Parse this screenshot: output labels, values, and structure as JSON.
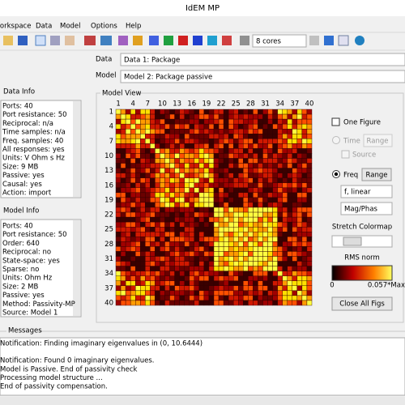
{
  "window": {
    "title": "IdEM MP"
  },
  "menu": [
    "Workspace",
    "Data",
    "Model",
    "Options",
    "Help"
  ],
  "toolbar": {
    "cores": "8 cores"
  },
  "data_row": {
    "label": "Data",
    "value": "Data 1: Package"
  },
  "model_row": {
    "label": "Model",
    "value": "Model 2: Package passive"
  },
  "data_info": {
    "title": "Data Info",
    "lines": [
      "Ports: 40",
      "Port resistance: 50",
      "Reciprocal: n/a",
      "Time samples: n/a",
      "Freq. samples: 40",
      "All responses: yes",
      "Units: V Ohm s Hz",
      "Size: 9 MB",
      "Passive: yes",
      "Causal: yes",
      "Action: import"
    ]
  },
  "model_info": {
    "title": "Model Info",
    "lines": [
      "Ports: 40",
      "Port resistance: 50",
      "Order: 640",
      "Reciprocal: no",
      "State-space: yes",
      "Sparse: no",
      "Units: Ohm Hz",
      "Size: 2 MB",
      "Passive: yes",
      "Method: Passivity-MP",
      "Source: Model 1"
    ]
  },
  "model_view": {
    "title": "Model View",
    "col_ticks": [
      1,
      4,
      7,
      10,
      13,
      16,
      19,
      22,
      25,
      28,
      31,
      34,
      37,
      40
    ],
    "row_ticks": [
      1,
      4,
      7,
      10,
      13,
      16,
      19,
      22,
      25,
      28,
      31,
      34,
      37,
      40
    ]
  },
  "controls": {
    "one_figure": "One Figure",
    "time": "Time",
    "time_range": "Range",
    "source": "Source",
    "freq": "Freq",
    "freq_range": "Range",
    "scale": "f, linear",
    "mode": "Mag/Phas",
    "stretch": "Stretch Colormap",
    "colorbar_title": "RMS norm",
    "colorbar_min": "0",
    "colorbar_max": "0.057*Max",
    "close": "Close All Figs"
  },
  "messages": {
    "title": "Messages",
    "lines": [
      "Notification: Finding imaginary eigenvalues in (0, 10.6444)",
      "Notification: Found 0 imaginary eigenvalues.",
      "Model is Passive. End of passivity check",
      "Processing model structure ...",
      "End of passivity compensation."
    ]
  }
}
